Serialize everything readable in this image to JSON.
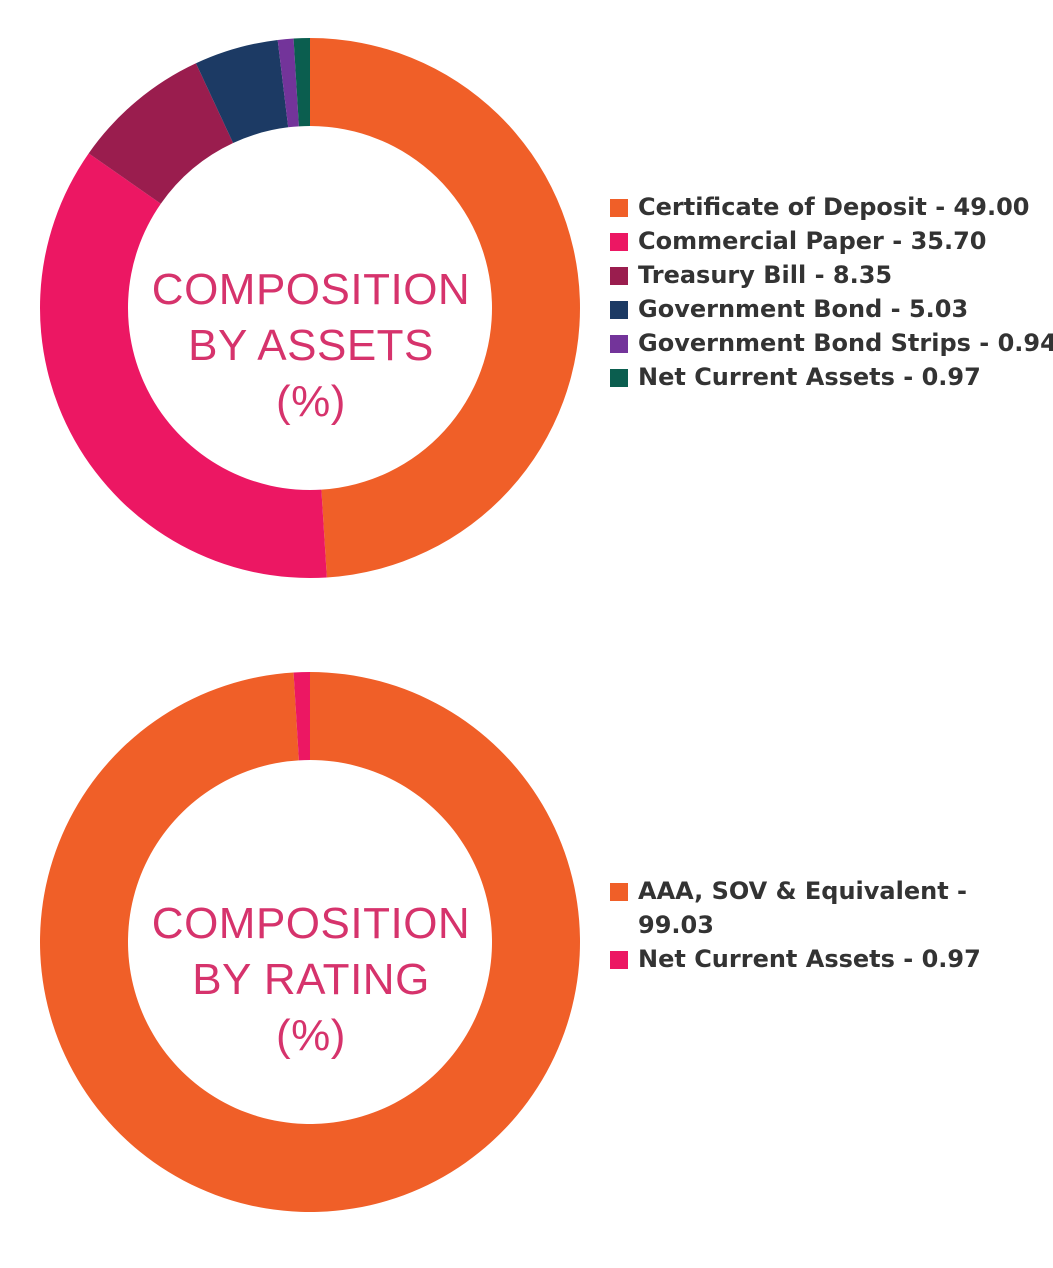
{
  "chart_data": [
    {
      "type": "pie",
      "title": "COMPOSITION BY ASSETS (%)",
      "title_lines": [
        "COMPOSITION",
        "BY ASSETS",
        "(%)"
      ],
      "legend_position": "right",
      "slices": [
        {
          "label": "Certificate of Deposit - 49.00",
          "value": 49.0,
          "color": "#f05f28"
        },
        {
          "label": "Commercial Paper - 35.70",
          "value": 35.7,
          "color": "#ec1763"
        },
        {
          "label": "Treasury Bill - 8.35",
          "value": 8.35,
          "color": "#9a1d4e"
        },
        {
          "label": "Government Bond - 5.03",
          "value": 5.03,
          "color": "#1c3a64"
        },
        {
          "label": "Government Bond Strips - 0.94",
          "value": 0.94,
          "color": "#73349a"
        },
        {
          "label": "Net Current Assets - 0.97",
          "value": 0.97,
          "color": "#0b5e4f"
        }
      ]
    },
    {
      "type": "pie",
      "title": "COMPOSITION BY RATING (%)",
      "title_lines": [
        "COMPOSITION",
        "BY RATING",
        "(%)"
      ],
      "legend_position": "right",
      "slices": [
        {
          "label": "AAA, SOV & Equivalent - 99.03",
          "value": 99.03,
          "color": "#f05f28"
        },
        {
          "label": "Net Current Assets - 0.97",
          "value": 0.97,
          "color": "#ec1763"
        }
      ]
    }
  ]
}
